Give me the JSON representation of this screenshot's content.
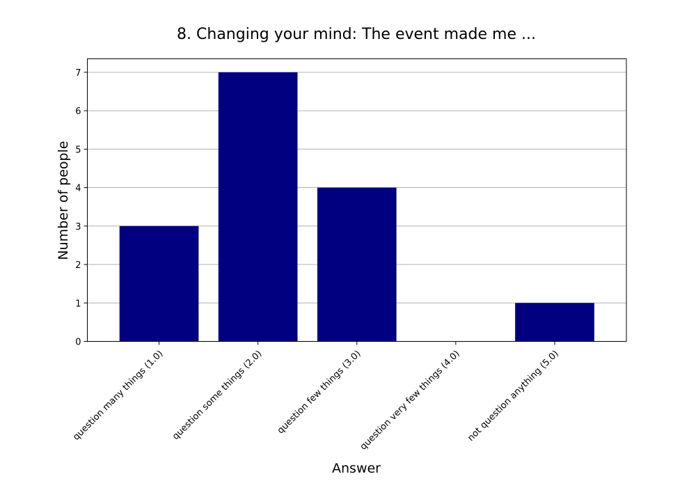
{
  "chart_data": {
    "type": "bar",
    "title": "8. Changing your mind: The event made me ...",
    "xlabel": "Answer",
    "ylabel": "Number of people",
    "categories": [
      "question many things (1.0)",
      "question some things (2.0)",
      "question few things (3.0)",
      "question very few things (4.0)",
      "not question anything (5.0)"
    ],
    "values": [
      3,
      7,
      4,
      0,
      1
    ],
    "ylim": [
      0,
      7.35
    ],
    "yticks": [
      0,
      1,
      2,
      3,
      4,
      5,
      6,
      7
    ],
    "grid": "horizontal",
    "bar_color": "#000080",
    "grid_color": "#b0b0b0"
  }
}
